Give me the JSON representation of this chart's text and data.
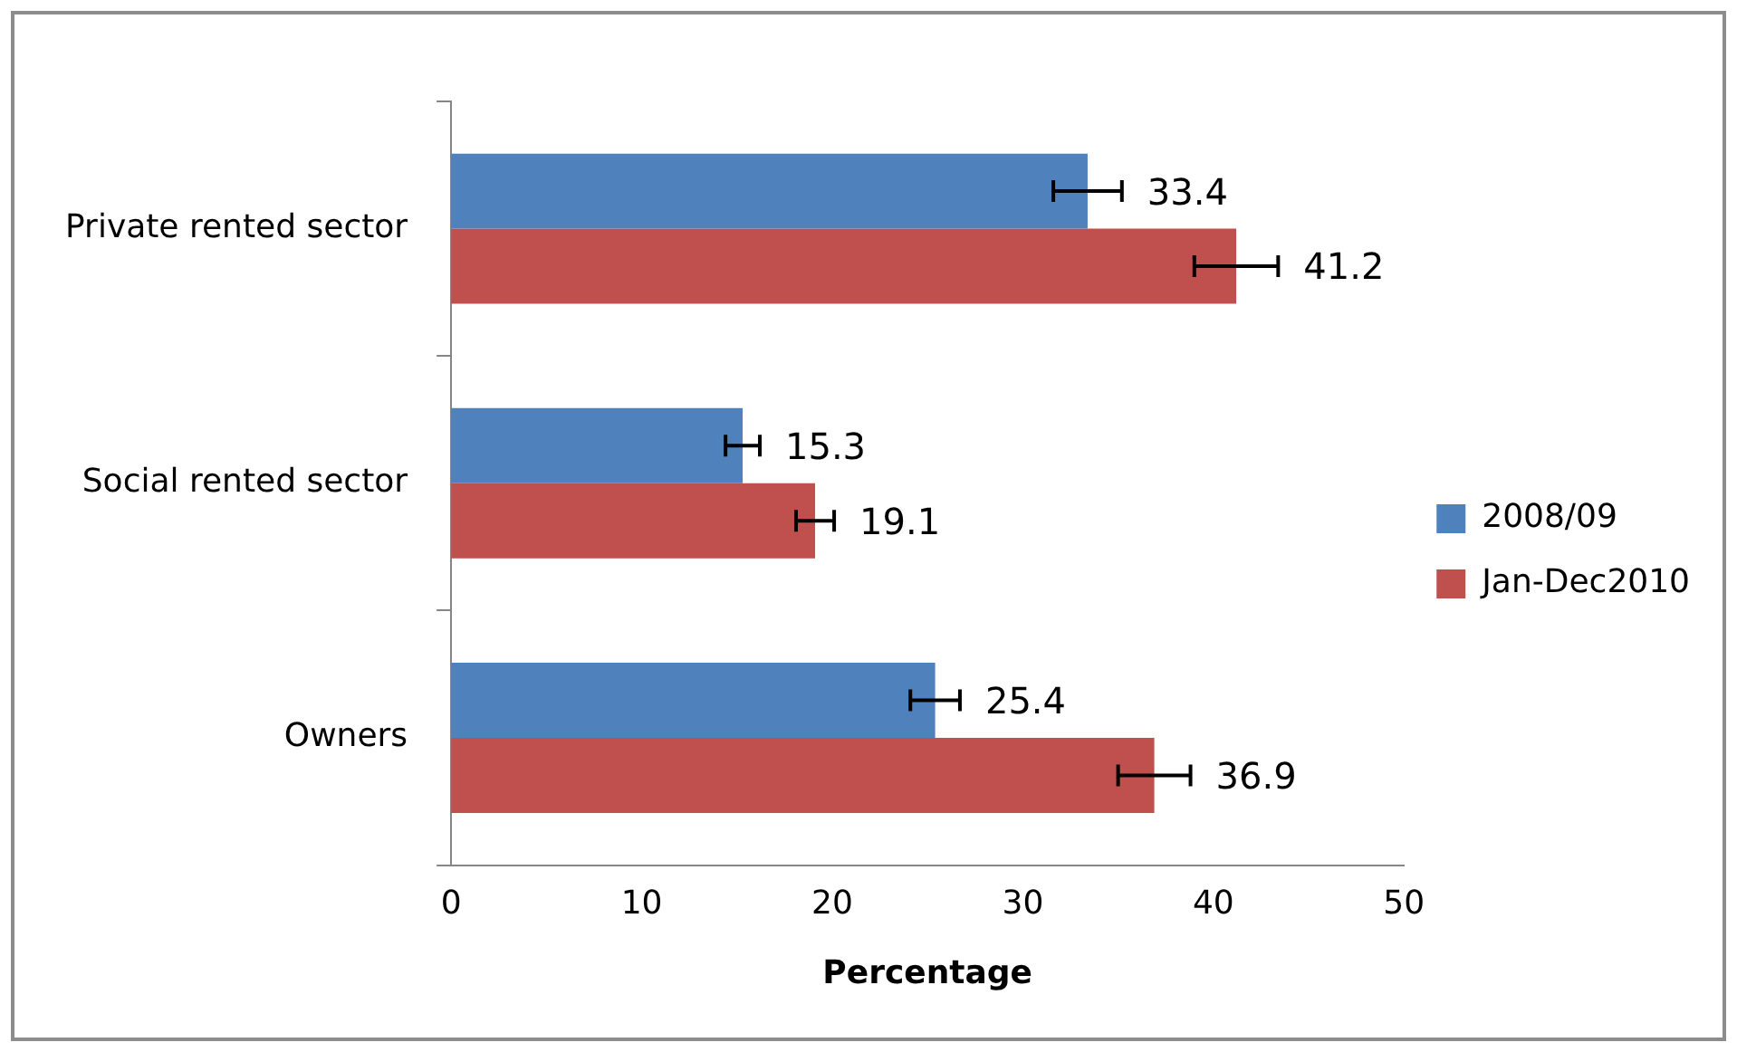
{
  "chart_data": {
    "type": "bar",
    "orientation": "horizontal",
    "categories": [
      "Private rented sector",
      "Social rented sector",
      "Owners"
    ],
    "series": [
      {
        "name": "2008/09",
        "color": "#4f81bd",
        "values": [
          33.4,
          15.3,
          25.4
        ],
        "errors": [
          1.8,
          0.9,
          1.3
        ]
      },
      {
        "name": "Jan-Dec2010",
        "color": "#c0504d",
        "values": [
          41.2,
          19.1,
          36.9
        ],
        "errors": [
          2.2,
          1.0,
          1.9
        ]
      }
    ],
    "xlabel": "Percentage",
    "xlim": [
      0,
      50
    ],
    "xticks": [
      0,
      10,
      20,
      30,
      40,
      50
    ],
    "data_labels": true,
    "grid": false,
    "legend": "right"
  }
}
